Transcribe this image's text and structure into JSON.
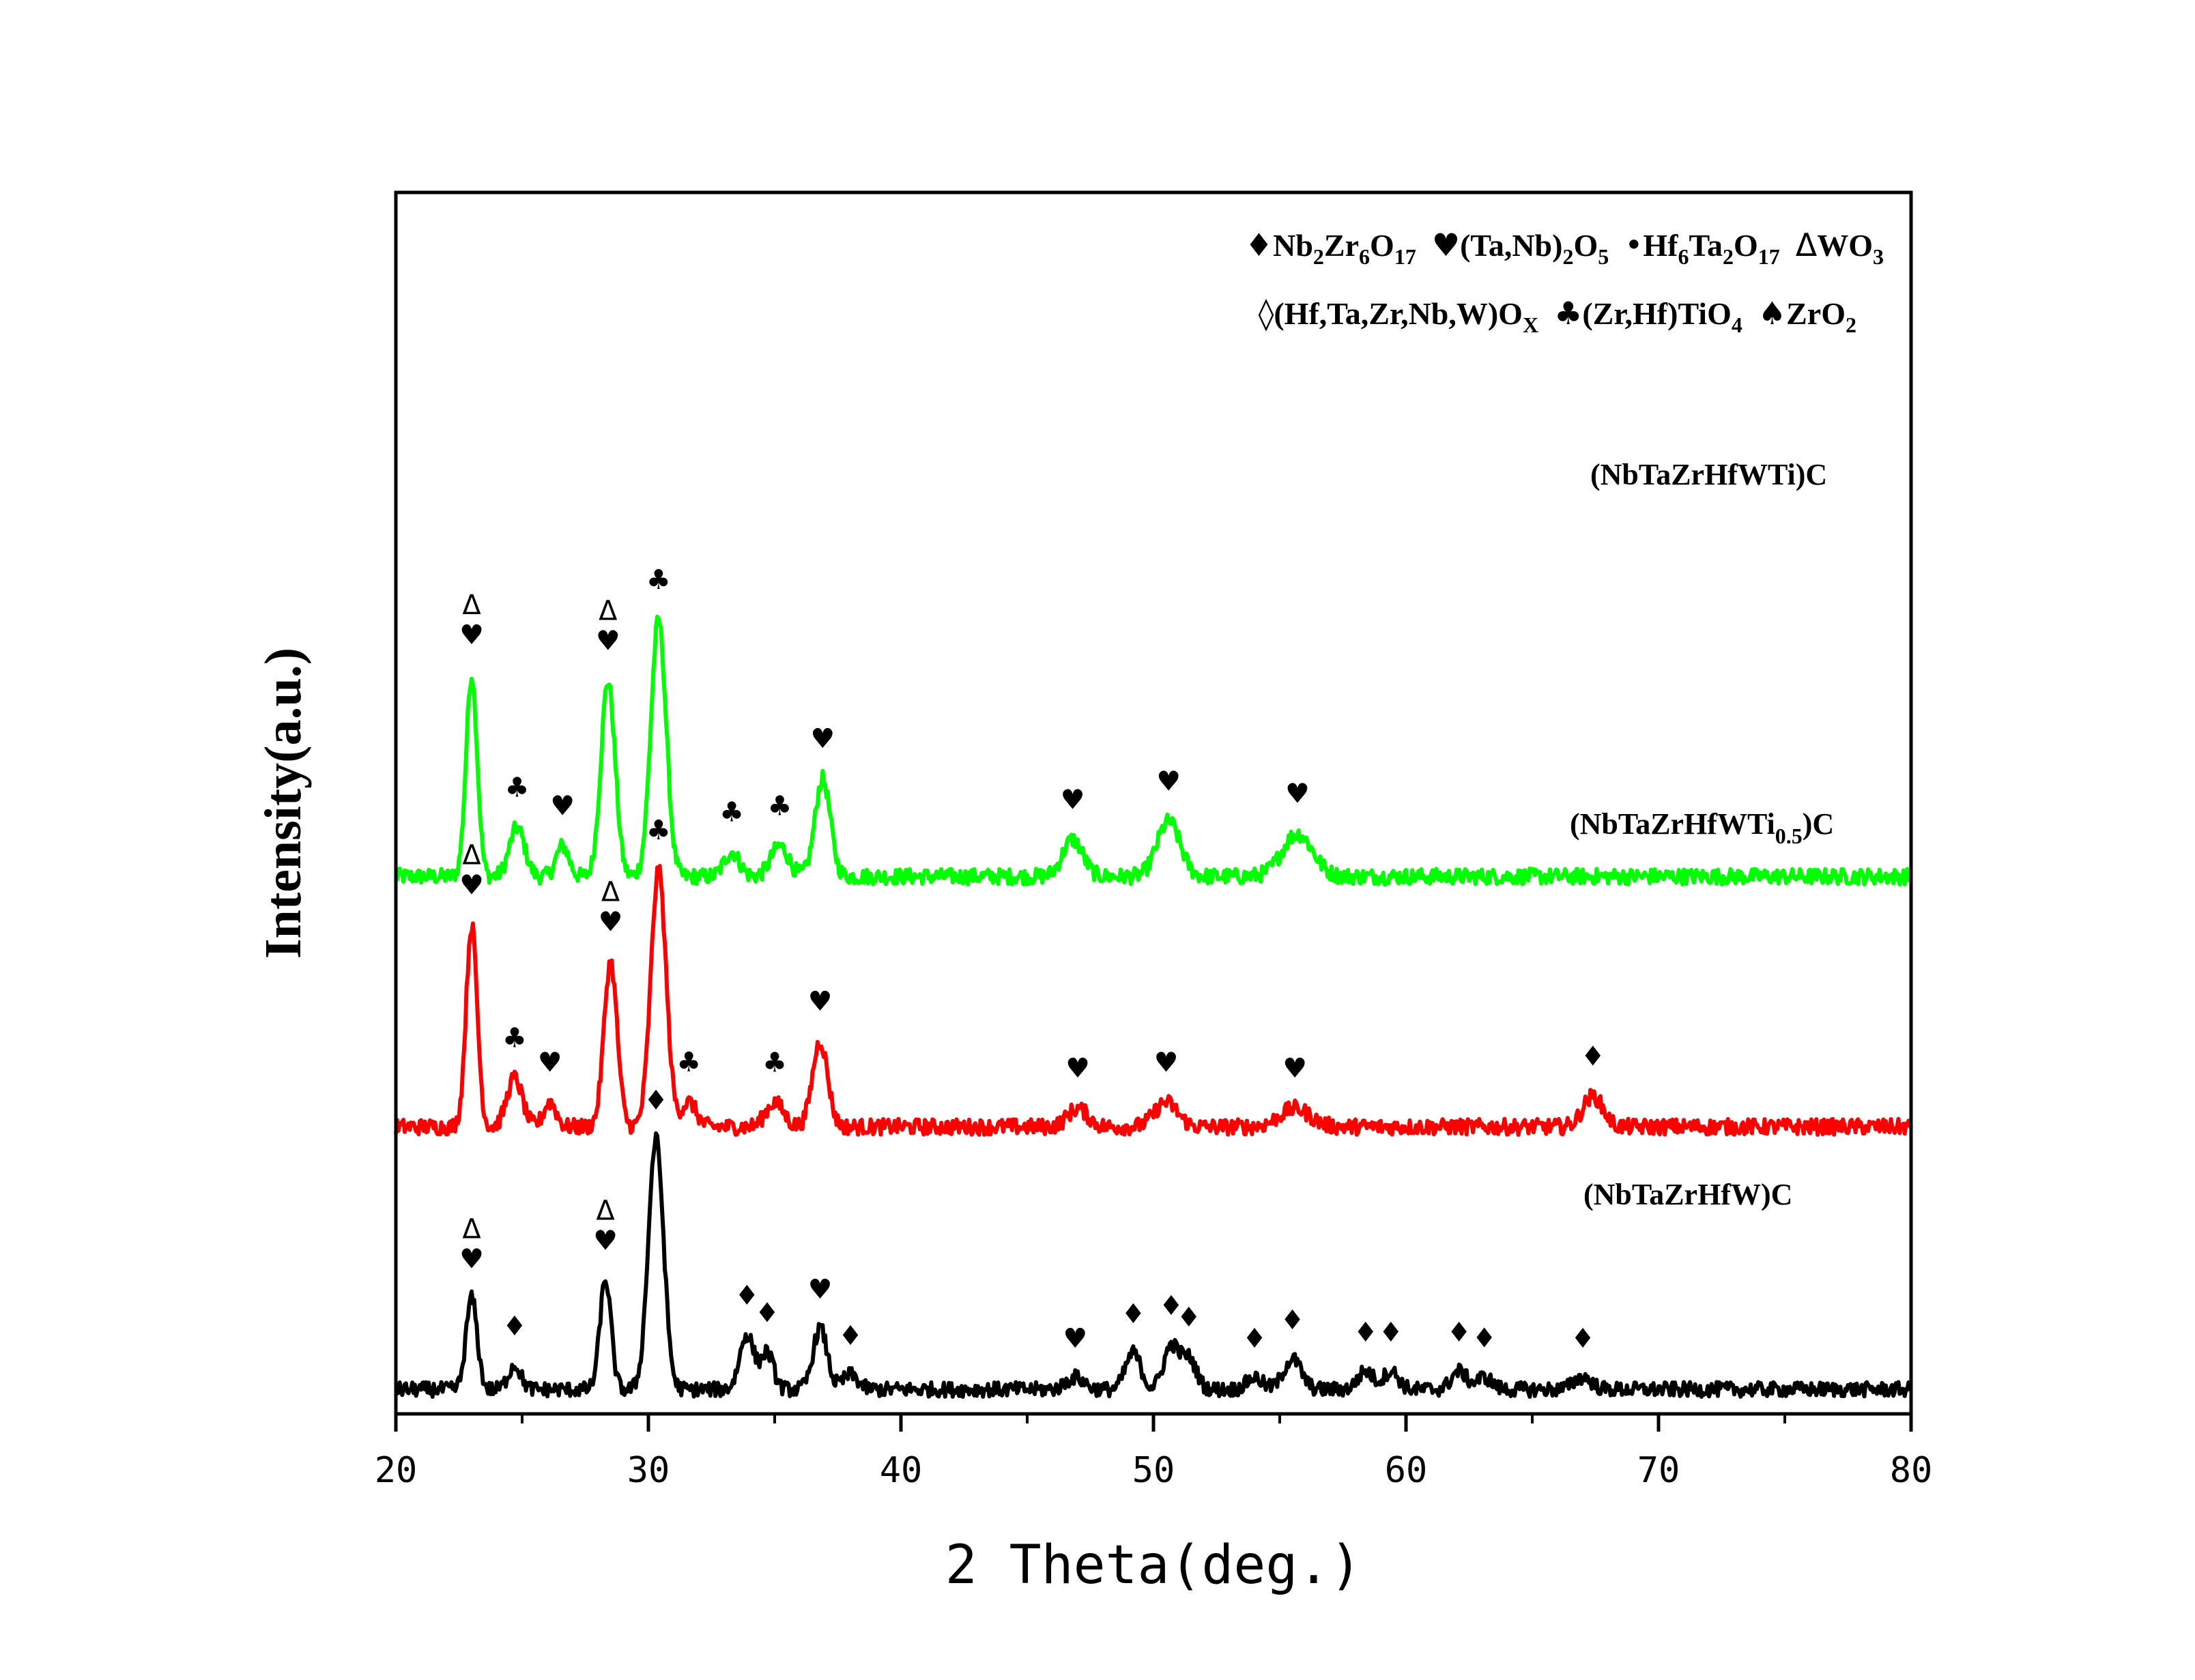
{
  "chart_data": {
    "type": "line",
    "xlabel": "2 Theta(deg.)",
    "ylabel": "Intensity(a.u.)",
    "xlim": [
      20,
      80
    ],
    "xticks": [
      20,
      30,
      40,
      50,
      60,
      70,
      80
    ],
    "ylim": [
      0,
      1
    ],
    "grid": false,
    "legend": {
      "position": "top-right",
      "entries": [
        {
          "symbol": "♦",
          "name": "Nb",
          "sub": [
            [
              "2",
              "Zr"
            ],
            [
              "6",
              "O"
            ],
            [
              "17",
              ""
            ]
          ]
        },
        {
          "symbol": "♥",
          "name": "(Ta,Nb)",
          "sub": [
            [
              "2",
              "O"
            ],
            [
              "5",
              ""
            ]
          ]
        },
        {
          "symbol": "•",
          "name": "Hf",
          "sub": [
            [
              "6",
              "Ta"
            ],
            [
              "2",
              "O"
            ],
            [
              "17",
              ""
            ]
          ]
        },
        {
          "symbol": "Δ",
          "name": "WO",
          "sub": [
            [
              "3",
              ""
            ]
          ]
        },
        {
          "symbol": "◊",
          "name": "(Hf,Ta,Zr,Nb,W)O",
          "sub": [
            [
              "X",
              ""
            ]
          ]
        },
        {
          "symbol": "♣",
          "name": "(Zr,Hf)TiO",
          "sub": [
            [
              "4",
              ""
            ]
          ]
        },
        {
          "symbol": "♠",
          "name": "ZrO",
          "sub": [
            [
              "2",
              ""
            ]
          ]
        }
      ]
    },
    "series": [
      {
        "name": "(NbTaZrHfWTi)C",
        "label_main": "(NbTaZrHfWTi)C",
        "label_sub": "",
        "label_tail": "",
        "color": "#00ff00",
        "baseline": 0.44,
        "noise": 0.013,
        "peaks": [
          [
            23.0,
            0.165,
            0.22
          ],
          [
            24.8,
            0.04,
            0.3
          ],
          [
            26.6,
            0.025,
            0.25
          ],
          [
            28.4,
            0.16,
            0.28
          ],
          [
            30.4,
            0.21,
            0.3
          ],
          [
            33.3,
            0.02,
            0.3
          ],
          [
            35.2,
            0.025,
            0.35
          ],
          [
            36.9,
            0.08,
            0.3
          ],
          [
            46.8,
            0.03,
            0.4
          ],
          [
            50.6,
            0.045,
            0.45
          ],
          [
            55.7,
            0.035,
            0.6
          ]
        ],
        "markers": [
          {
            "x": 23.0,
            "symbols": [
              "Δ",
              "♥"
            ]
          },
          {
            "x": 24.8,
            "symbols": [
              "♣"
            ]
          },
          {
            "x": 26.6,
            "symbols": [
              "♥"
            ]
          },
          {
            "x": 28.4,
            "symbols": [
              "Δ",
              "♥"
            ]
          },
          {
            "x": 30.4,
            "symbols": [
              "♣"
            ]
          },
          {
            "x": 33.3,
            "symbols": [
              "♣"
            ]
          },
          {
            "x": 35.2,
            "symbols": [
              "♣"
            ]
          },
          {
            "x": 36.9,
            "symbols": [
              "♥"
            ]
          },
          {
            "x": 46.8,
            "symbols": [
              "♥"
            ]
          },
          {
            "x": 50.6,
            "symbols": [
              "♥"
            ]
          },
          {
            "x": 55.7,
            "symbols": [
              "♥"
            ]
          }
        ]
      },
      {
        "name": "(NbTaZrHfWTi0.5)C",
        "label_main": "(NbTaZrHfWTi",
        "label_sub": "0.5",
        "label_tail": ")C",
        "color": "#ff0000",
        "baseline": 0.235,
        "noise": 0.013,
        "peaks": [
          [
            23.0,
            0.165,
            0.22
          ],
          [
            24.7,
            0.04,
            0.3
          ],
          [
            26.1,
            0.02,
            0.25
          ],
          [
            28.5,
            0.135,
            0.26
          ],
          [
            30.4,
            0.21,
            0.3
          ],
          [
            31.6,
            0.02,
            0.3
          ],
          [
            35.0,
            0.02,
            0.35
          ],
          [
            36.8,
            0.07,
            0.3
          ],
          [
            47.0,
            0.015,
            0.4
          ],
          [
            50.5,
            0.02,
            0.45
          ],
          [
            55.6,
            0.015,
            0.6
          ],
          [
            67.4,
            0.025,
            0.4
          ]
        ],
        "markers": [
          {
            "x": 23.0,
            "symbols": [
              "Δ",
              "♥"
            ]
          },
          {
            "x": 24.7,
            "symbols": [
              "♣"
            ]
          },
          {
            "x": 26.1,
            "symbols": [
              "♥"
            ]
          },
          {
            "x": 28.5,
            "symbols": [
              "Δ",
              "♥"
            ]
          },
          {
            "x": 30.4,
            "symbols": [
              "♣"
            ]
          },
          {
            "x": 31.6,
            "symbols": [
              "♣"
            ]
          },
          {
            "x": 35.0,
            "symbols": [
              "♣"
            ]
          },
          {
            "x": 36.8,
            "symbols": [
              "♥"
            ]
          },
          {
            "x": 47.0,
            "symbols": [
              "♥"
            ]
          },
          {
            "x": 50.5,
            "symbols": [
              "♥"
            ]
          },
          {
            "x": 55.6,
            "symbols": [
              "♥"
            ]
          },
          {
            "x": 67.4,
            "symbols": [
              "♦"
            ]
          }
        ]
      },
      {
        "name": "(NbTaZrHfW)C",
        "label_main": "(NbTaZrHfW)C",
        "label_sub": "",
        "label_tail": "",
        "color": "#000000",
        "baseline": 0.02,
        "noise": 0.012,
        "peaks": [
          [
            23.0,
            0.075,
            0.22
          ],
          [
            24.7,
            0.02,
            0.25
          ],
          [
            28.3,
            0.09,
            0.22
          ],
          [
            30.3,
            0.205,
            0.3
          ],
          [
            33.9,
            0.045,
            0.28
          ],
          [
            34.7,
            0.03,
            0.25
          ],
          [
            36.8,
            0.05,
            0.28
          ],
          [
            38.0,
            0.012,
            0.3
          ],
          [
            46.9,
            0.01,
            0.35
          ],
          [
            49.2,
            0.03,
            0.3
          ],
          [
            50.7,
            0.035,
            0.3
          ],
          [
            51.4,
            0.025,
            0.3
          ],
          [
            54.0,
            0.01,
            0.3
          ],
          [
            55.5,
            0.025,
            0.35
          ],
          [
            58.4,
            0.015,
            0.3
          ],
          [
            59.4,
            0.015,
            0.3
          ],
          [
            62.1,
            0.015,
            0.3
          ],
          [
            63.1,
            0.01,
            0.3
          ],
          [
            67.0,
            0.01,
            0.35
          ]
        ],
        "markers": [
          {
            "x": 23.0,
            "symbols": [
              "Δ",
              "♥"
            ]
          },
          {
            "x": 24.7,
            "symbols": [
              "♦"
            ]
          },
          {
            "x": 28.3,
            "symbols": [
              "Δ",
              "♥"
            ]
          },
          {
            "x": 30.3,
            "symbols": [
              "♦"
            ]
          },
          {
            "x": 33.9,
            "symbols": [
              "♦"
            ]
          },
          {
            "x": 34.7,
            "symbols": [
              "♦"
            ]
          },
          {
            "x": 36.8,
            "symbols": [
              "♥"
            ]
          },
          {
            "x": 38.0,
            "symbols": [
              "♦"
            ]
          },
          {
            "x": 46.9,
            "symbols": [
              "♥"
            ]
          },
          {
            "x": 49.2,
            "symbols": [
              "♦"
            ]
          },
          {
            "x": 50.7,
            "symbols": [
              "♦"
            ]
          },
          {
            "x": 51.4,
            "symbols": [
              "♦"
            ]
          },
          {
            "x": 54.0,
            "symbols": [
              "♦"
            ]
          },
          {
            "x": 55.5,
            "symbols": [
              "♦"
            ]
          },
          {
            "x": 58.4,
            "symbols": [
              "♦"
            ]
          },
          {
            "x": 59.4,
            "symbols": [
              "♦"
            ]
          },
          {
            "x": 62.1,
            "symbols": [
              "♦"
            ]
          },
          {
            "x": 63.1,
            "symbols": [
              "♦"
            ]
          },
          {
            "x": 67.0,
            "symbols": [
              "♦"
            ]
          }
        ]
      }
    ]
  }
}
